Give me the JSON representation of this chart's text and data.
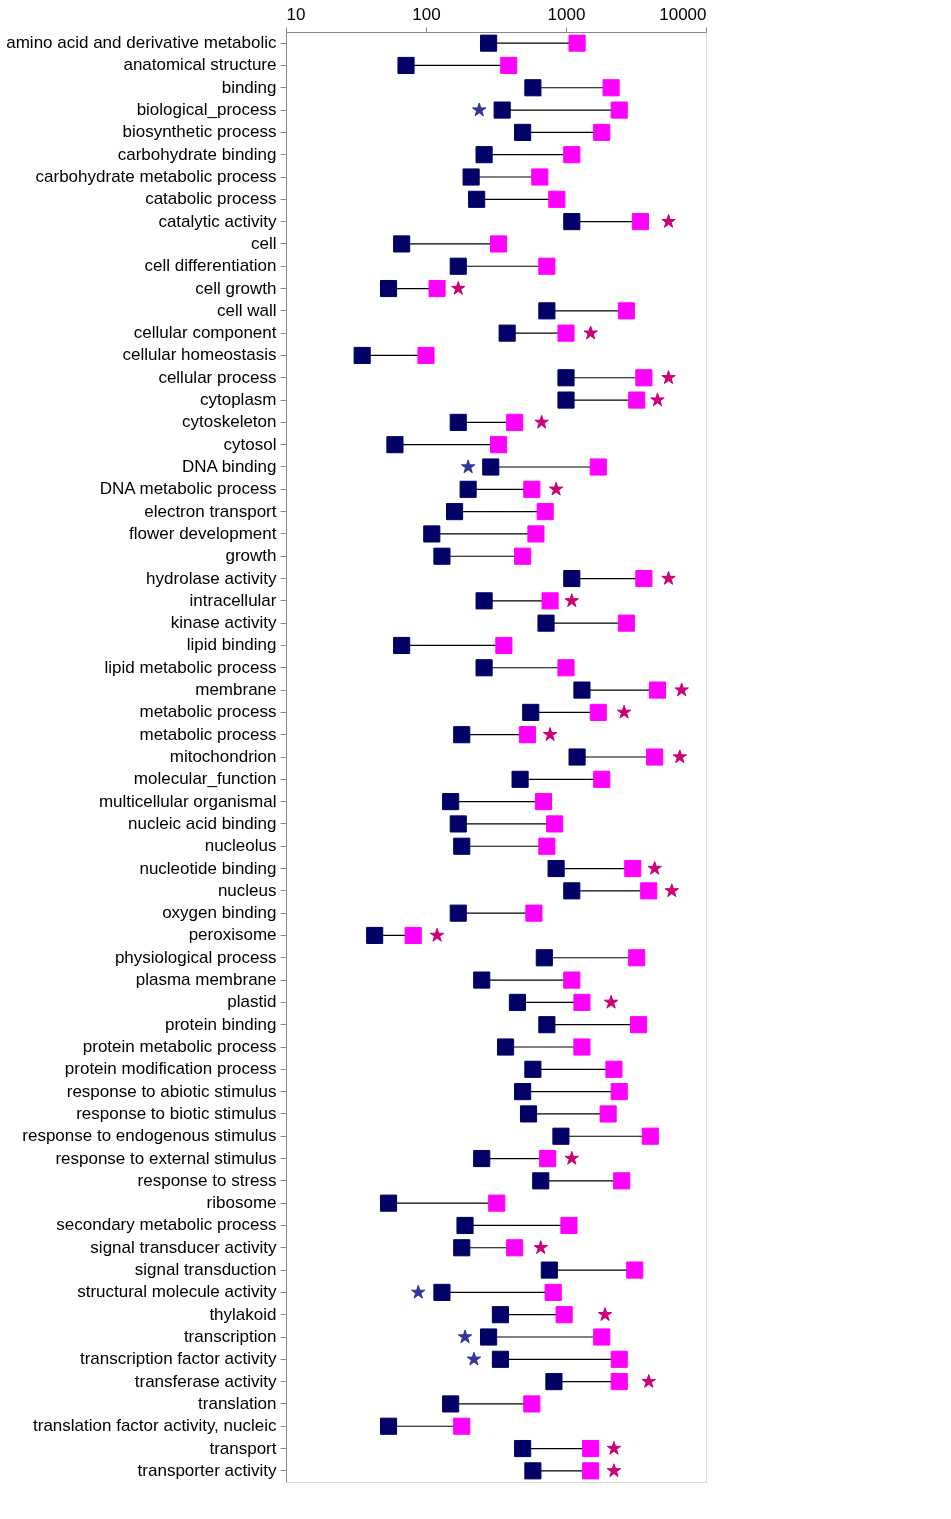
{
  "chart_data": {
    "type": "scatter",
    "orientation": "horizontal",
    "log": "x",
    "grid": false,
    "categories": [
      "amino acid and derivative metabolic",
      "anatomical structure",
      "binding",
      "biological_process",
      "biosynthetic process",
      "carbohydrate binding",
      "carbohydrate metabolic process",
      "catabolic process",
      "catalytic activity",
      "cell",
      "cell differentiation",
      "cell growth",
      "cell wall",
      "cellular component",
      "cellular homeostasis",
      "cellular process",
      "cytoplasm",
      "cytoskeleton",
      "cytosol",
      "DNA binding",
      "DNA metabolic process",
      "electron transport",
      "flower development",
      "growth",
      "hydrolase activity",
      "intracellular",
      "kinase activity",
      "lipid binding",
      "lipid metabolic process",
      "membrane",
      "metabolic process",
      "metabolic process",
      "mitochondrion",
      "molecular_function",
      "multicellular organismal",
      "nucleic acid binding",
      "nucleolus",
      "nucleotide binding",
      "nucleus",
      "oxygen binding",
      "peroxisome",
      "physiological process",
      "plasma membrane",
      "plastid",
      "protein binding",
      "protein metabolic process",
      "protein modification process",
      "response to abiotic stimulus",
      "response to biotic stimulus",
      "response to endogenous stimulus",
      "response to external stimulus",
      "response to stress",
      "ribosome",
      "secondary metabolic process",
      "signal transducer activity",
      "signal transduction",
      "structural molecule activity",
      "thylakoid",
      "transcription",
      "transcription factor activity",
      "transferase activity",
      "translation",
      "translation factor activity, nucleic",
      "transport",
      "transporter activity"
    ],
    "xlim": [
      10,
      10000
    ],
    "xticks": [
      10,
      100,
      1000,
      10000
    ],
    "series": [
      {
        "color": "#000066",
        "marker": "square",
        "values": [
          280,
          72,
          580,
          350,
          490,
          260,
          210,
          230,
          1100,
          67,
          170,
          54,
          730,
          380,
          35,
          1000,
          1000,
          170,
          60,
          290,
          200,
          160,
          110,
          130,
          1100,
          260,
          720,
          67,
          260,
          1300,
          560,
          180,
          1200,
          470,
          150,
          170,
          180,
          850,
          1100,
          170,
          43,
          700,
          250,
          450,
          730,
          370,
          580,
          490,
          540,
          920,
          250,
          660,
          54,
          190,
          180,
          760,
          130,
          340,
          280,
          340,
          820,
          150,
          54,
          490,
          580
        ]
      },
      {
        "color": "#ff00ff",
        "marker": "square",
        "values": [
          1200,
          390,
          2100,
          2400,
          1800,
          1100,
          650,
          860,
          3400,
          330,
          730,
          120,
          2700,
          1000,
          100,
          3600,
          3200,
          430,
          330,
          1700,
          570,
          710,
          610,
          490,
          3600,
          770,
          2700,
          360,
          1000,
          4500,
          1700,
          530,
          4300,
          1800,
          690,
          830,
          730,
          3000,
          3900,
          590,
          81,
          3200,
          1100,
          1300,
          3300,
          1300,
          2200,
          2400,
          2000,
          4000,
          740,
          2500,
          320,
          1050,
          430,
          3100,
          810,
          970,
          1800,
          2400,
          2400,
          570,
          180,
          1500,
          1500
        ]
      },
      {
        "color": "#333399",
        "marker": "star",
        "values": [
          null,
          null,
          null,
          240,
          null,
          null,
          null,
          null,
          null,
          null,
          null,
          null,
          null,
          null,
          null,
          null,
          null,
          null,
          null,
          200,
          null,
          null,
          null,
          null,
          null,
          null,
          null,
          null,
          null,
          null,
          null,
          null,
          null,
          null,
          null,
          null,
          null,
          null,
          null,
          null,
          null,
          null,
          null,
          null,
          null,
          null,
          null,
          null,
          null,
          null,
          null,
          null,
          null,
          null,
          null,
          null,
          88,
          null,
          190,
          220,
          null,
          null,
          null,
          null,
          null
        ]
      },
      {
        "color": "#cc0077",
        "marker": "star",
        "values": [
          null,
          null,
          null,
          null,
          null,
          null,
          null,
          null,
          5400,
          null,
          null,
          170,
          null,
          1500,
          null,
          5400,
          4500,
          670,
          null,
          null,
          850,
          null,
          null,
          null,
          5400,
          1100,
          null,
          null,
          null,
          6700,
          2600,
          770,
          6500,
          null,
          null,
          null,
          null,
          4300,
          5700,
          null,
          120,
          null,
          null,
          2100,
          null,
          null,
          null,
          null,
          null,
          null,
          1100,
          null,
          null,
          null,
          660,
          null,
          null,
          1900,
          null,
          null,
          3900,
          null,
          null,
          2200,
          2200
        ]
      }
    ]
  }
}
